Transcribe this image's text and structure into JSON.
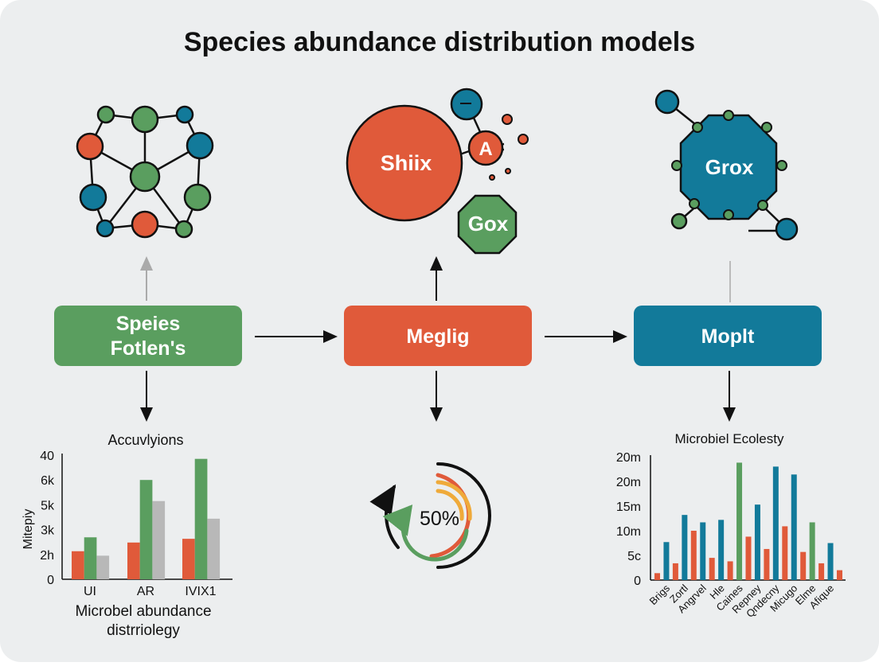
{
  "title": "Species abundance distribution models",
  "colors": {
    "orange": "#e05a3a",
    "green": "#5a9e5f",
    "blue": "#127a9a",
    "gray": "#b8b8b8",
    "yellow": "#efaa3a",
    "background": "#eceeef"
  },
  "boxes": [
    {
      "line1": "Speies",
      "line2": "Fotlen's",
      "color": "green"
    },
    {
      "label": "Meglig",
      "color": "orange"
    },
    {
      "label": "Moplt",
      "color": "blue"
    }
  ],
  "middle_cluster": {
    "big_circle": "Shiix",
    "small_circle": "A",
    "octagon": "Gox"
  },
  "right_octagon": {
    "label": "Grox"
  },
  "progress": {
    "label": "50%",
    "value": 50
  },
  "chart_data": [
    {
      "type": "bar",
      "title": "Accuvlyions",
      "ylabel": "Mitepiy",
      "xlabel": [
        "Microbel abundance",
        "distrriolegy"
      ],
      "yticks": [
        "0",
        "2h",
        "3k",
        "5k",
        "6k",
        "40"
      ],
      "categories": [
        "UI",
        "AR",
        "IVIX1"
      ],
      "series_colors": [
        "orange",
        "green",
        "gray"
      ],
      "values": [
        [
          1.13,
          1.69,
          0.95
        ],
        [
          1.48,
          4.0,
          3.15
        ],
        [
          1.63,
          4.85,
          2.44
        ]
      ],
      "value_units": "tick steps (0 = first tick, 5 = last tick)"
    },
    {
      "type": "bar",
      "title": "Microbiel Ecolesty",
      "yticks": [
        "0",
        "5c",
        "10m",
        "15m",
        "20m",
        "20m"
      ],
      "categories": [
        "Brigs",
        "Zortl",
        "Angrvel",
        "Hle",
        "Caines",
        "Repney",
        "Qndecny",
        "Micugo",
        "Elme",
        "Afique"
      ],
      "bars": [
        {
          "v": 1.4,
          "c": "orange"
        },
        {
          "v": 7.7,
          "c": "blue"
        },
        {
          "v": 3.4,
          "c": "orange"
        },
        {
          "v": 13.2,
          "c": "blue"
        },
        {
          "v": 10.0,
          "c": "orange"
        },
        {
          "v": 11.7,
          "c": "blue"
        },
        {
          "v": 4.5,
          "c": "orange"
        },
        {
          "v": 12.2,
          "c": "blue"
        },
        {
          "v": 3.8,
          "c": "orange"
        },
        {
          "v": 23.8,
          "c": "green"
        },
        {
          "v": 8.8,
          "c": "orange"
        },
        {
          "v": 15.3,
          "c": "blue"
        },
        {
          "v": 6.3,
          "c": "orange"
        },
        {
          "v": 23.0,
          "c": "blue"
        },
        {
          "v": 10.9,
          "c": "orange"
        },
        {
          "v": 21.4,
          "c": "blue"
        },
        {
          "v": 5.7,
          "c": "orange"
        },
        {
          "v": 11.7,
          "c": "green"
        },
        {
          "v": 3.4,
          "c": "orange"
        },
        {
          "v": 7.5,
          "c": "blue"
        },
        {
          "v": 2.0,
          "c": "orange"
        }
      ],
      "ylim": [
        0,
        25
      ]
    }
  ]
}
